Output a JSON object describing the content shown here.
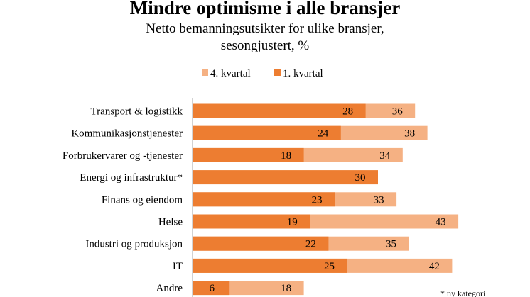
{
  "chart_data": {
    "type": "bar",
    "orientation": "horizontal",
    "title": "Mindre optimisme i alle bransjer",
    "subtitle_line1": "Netto bemanningsutsikter for ulike bransjer,",
    "subtitle_line2": "sesongjustert, %",
    "categories": [
      "Transport & logistikk",
      "Kommunikasjonstjenester",
      "Forbrukervarer og -tjenester",
      "Energi og infrastruktur*",
      "Finans og eiendom",
      "Helse",
      "Industri og produksjon",
      "IT",
      "Andre"
    ],
    "series": [
      {
        "name": "4. kvartal",
        "color": "#f5b183",
        "values": [
          36,
          38,
          34,
          null,
          33,
          43,
          35,
          42,
          18
        ]
      },
      {
        "name": "1. kvartal",
        "color": "#ed7d31",
        "values": [
          28,
          24,
          18,
          30,
          23,
          19,
          22,
          25,
          6
        ]
      }
    ],
    "legend_position": "top",
    "xlim": [
      0,
      50
    ],
    "footnote": "* ny kategori"
  },
  "colors": {
    "background": "#ffffff",
    "text": "#000000",
    "axis": "#a6a6a6"
  }
}
